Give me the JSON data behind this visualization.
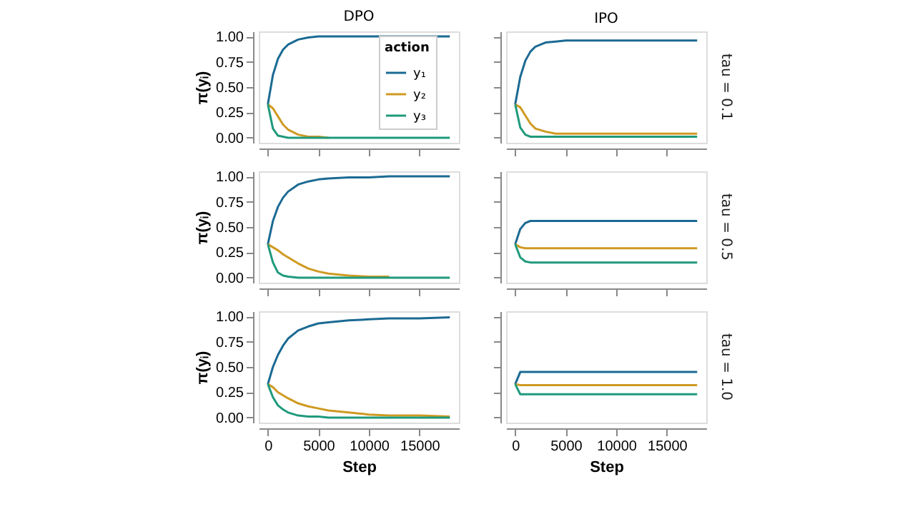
{
  "chart_data": [
    {
      "type": "line",
      "title": "DPO",
      "ylabel": "π(yᵢ)",
      "legend_title": "action",
      "legend": "right",
      "tick_labels": "y",
      "xlim": [
        -900,
        18900
      ],
      "ylim": [
        -0.05,
        1.05
      ],
      "xticks": [
        0,
        5000,
        10000,
        15000
      ],
      "yticks": [
        {
          "value": 0,
          "label": "0.00"
        },
        {
          "value": 0.25,
          "label": "0.25"
        },
        {
          "value": 0.5,
          "label": "0.50"
        },
        {
          "value": 0.75,
          "label": "0.75"
        },
        {
          "value": 1,
          "label": "1.00"
        }
      ],
      "x": [
        0,
        500,
        1000,
        1500,
        2000,
        3000,
        4000,
        5000,
        6000,
        8000,
        10000,
        12000,
        15000,
        18000
      ],
      "series": [
        {
          "name": "y₁",
          "color": "#1b6a93",
          "values": [
            0.33,
            0.62,
            0.78,
            0.87,
            0.92,
            0.97,
            0.99,
            1,
            1,
            1,
            1,
            1,
            1,
            1
          ]
        },
        {
          "name": "y₂",
          "color": "#cf9a22",
          "values": [
            0.33,
            0.29,
            0.21,
            0.13,
            0.08,
            0.03,
            0.01,
            0.01,
            0,
            null,
            null,
            null,
            null,
            null
          ]
        },
        {
          "name": "y₃",
          "color": "#1f9a7c",
          "values": [
            0.33,
            0.09,
            0.02,
            0.01,
            0,
            0,
            0,
            0,
            0,
            0,
            0,
            0,
            0,
            0
          ]
        }
      ]
    },
    {
      "type": "line",
      "title": "IPO",
      "y2label": "tau = 0.1",
      "tick_labels": false,
      "xlim": [
        -900,
        18900
      ],
      "ylim": [
        -0.05,
        1.05
      ],
      "xticks": [
        0,
        5000,
        10000,
        15000
      ],
      "yticks": [
        0,
        0.25,
        0.5,
        0.75,
        1
      ],
      "x": [
        0,
        500,
        1000,
        1500,
        2000,
        3000,
        4000,
        5000,
        6000,
        8000,
        10000,
        12000,
        15000,
        18000
      ],
      "series": [
        {
          "color": "#1b6a93",
          "values": [
            0.33,
            0.6,
            0.76,
            0.85,
            0.9,
            0.94,
            0.95,
            0.96,
            0.96,
            0.96,
            0.96,
            0.96,
            0.96,
            0.96
          ]
        },
        {
          "color": "#cf9a22",
          "values": [
            0.33,
            0.3,
            0.22,
            0.14,
            0.09,
            0.06,
            0.04,
            0.04,
            0.04,
            0.04,
            0.04,
            0.04,
            0.04,
            0.04
          ]
        },
        {
          "color": "#1f9a7c",
          "values": [
            0.33,
            0.1,
            0.03,
            0.01,
            0.01,
            0.01,
            0.01,
            0.01,
            0.01,
            0.01,
            0.01,
            0.01,
            0.01,
            0.01
          ]
        }
      ]
    },
    {
      "type": "line",
      "ylabel": "π(yᵢ)",
      "tick_labels": "y",
      "xlim": [
        -900,
        18900
      ],
      "ylim": [
        -0.05,
        1.05
      ],
      "xticks": [
        0,
        5000,
        10000,
        15000
      ],
      "yticks": [
        {
          "value": 0,
          "label": "0.00"
        },
        {
          "value": 0.25,
          "label": "0.25"
        },
        {
          "value": 0.5,
          "label": "0.50"
        },
        {
          "value": 0.75,
          "label": "0.75"
        },
        {
          "value": 1,
          "label": "1.00"
        }
      ],
      "x": [
        0,
        500,
        1000,
        1500,
        2000,
        3000,
        4000,
        5000,
        6000,
        8000,
        10000,
        12000,
        15000,
        18000
      ],
      "series": [
        {
          "color": "#1b6a93",
          "values": [
            0.33,
            0.56,
            0.7,
            0.79,
            0.85,
            0.92,
            0.95,
            0.97,
            0.98,
            0.99,
            0.99,
            1,
            1,
            1
          ]
        },
        {
          "color": "#cf9a22",
          "values": [
            0.33,
            0.3,
            0.27,
            0.23,
            0.2,
            0.14,
            0.09,
            0.06,
            0.04,
            0.02,
            0.01,
            0.01,
            null,
            null
          ]
        },
        {
          "color": "#1f9a7c",
          "values": [
            0.33,
            0.15,
            0.05,
            0.02,
            0.01,
            0,
            0,
            0,
            0,
            0,
            0,
            0,
            0,
            0
          ]
        }
      ]
    },
    {
      "type": "line",
      "y2label": "tau = 0.5",
      "tick_labels": false,
      "xlim": [
        -900,
        18900
      ],
      "ylim": [
        -0.05,
        1.05
      ],
      "xticks": [
        0,
        5000,
        10000,
        15000
      ],
      "yticks": [
        0,
        0.25,
        0.5,
        0.75,
        1
      ],
      "x": [
        0,
        500,
        1000,
        1500,
        2000,
        3000,
        4000,
        5000,
        6000,
        8000,
        10000,
        12000,
        15000,
        18000
      ],
      "series": [
        {
          "color": "#1b6a93",
          "values": [
            0.33,
            0.48,
            0.54,
            0.56,
            0.56,
            0.56,
            0.56,
            0.56,
            0.56,
            0.56,
            0.56,
            0.56,
            0.56,
            0.56
          ]
        },
        {
          "color": "#cf9a22",
          "values": [
            0.33,
            0.3,
            0.29,
            0.29,
            0.29,
            0.29,
            0.29,
            0.29,
            0.29,
            0.29,
            0.29,
            0.29,
            0.29,
            0.29
          ]
        },
        {
          "color": "#1f9a7c",
          "values": [
            0.33,
            0.2,
            0.16,
            0.15,
            0.15,
            0.15,
            0.15,
            0.15,
            0.15,
            0.15,
            0.15,
            0.15,
            0.15,
            0.15
          ]
        }
      ]
    },
    {
      "type": "line",
      "ylabel": "π(yᵢ)",
      "xlabel": "Step",
      "xlim": [
        -900,
        18900
      ],
      "ylim": [
        -0.05,
        1.05
      ],
      "xticks": [
        0,
        5000,
        10000,
        15000
      ],
      "yticks": [
        {
          "value": 0,
          "label": "0.00"
        },
        {
          "value": 0.25,
          "label": "0.25"
        },
        {
          "value": 0.5,
          "label": "0.50"
        },
        {
          "value": 0.75,
          "label": "0.75"
        },
        {
          "value": 1,
          "label": "1.00"
        }
      ],
      "x": [
        0,
        500,
        1000,
        1500,
        2000,
        3000,
        4000,
        5000,
        6000,
        8000,
        10000,
        12000,
        15000,
        18000
      ],
      "series": [
        {
          "color": "#1b6a93",
          "values": [
            0.33,
            0.5,
            0.62,
            0.71,
            0.78,
            0.86,
            0.9,
            0.93,
            0.94,
            0.96,
            0.97,
            0.98,
            0.98,
            0.99
          ]
        },
        {
          "color": "#cf9a22",
          "values": [
            0.33,
            0.3,
            0.25,
            0.22,
            0.19,
            0.14,
            0.11,
            0.09,
            0.07,
            0.05,
            0.03,
            0.02,
            0.02,
            0.01
          ]
        },
        {
          "color": "#1f9a7c",
          "values": [
            0.33,
            0.2,
            0.12,
            0.08,
            0.05,
            0.02,
            0.01,
            0.01,
            0,
            0,
            0,
            0,
            0,
            0
          ]
        }
      ]
    },
    {
      "type": "line",
      "y2label": "tau = 1.0",
      "xlabel": "Step",
      "tick_labels": "x",
      "xlim": [
        -900,
        18900
      ],
      "ylim": [
        -0.05,
        1.05
      ],
      "xticks": [
        0,
        5000,
        10000,
        15000
      ],
      "yticks": [
        0,
        0.25,
        0.5,
        0.75,
        1
      ],
      "x": [
        0,
        500,
        1000,
        1500,
        2000,
        3000,
        4000,
        5000,
        6000,
        8000,
        10000,
        12000,
        15000,
        18000
      ],
      "series": [
        {
          "color": "#1b6a93",
          "values": [
            0.33,
            0.45,
            0.45,
            0.45,
            0.45,
            0.45,
            0.45,
            0.45,
            0.45,
            0.45,
            0.45,
            0.45,
            0.45,
            0.45
          ]
        },
        {
          "color": "#cf9a22",
          "values": [
            0.33,
            0.32,
            0.32,
            0.32,
            0.32,
            0.32,
            0.32,
            0.32,
            0.32,
            0.32,
            0.32,
            0.32,
            0.32,
            0.32
          ]
        },
        {
          "color": "#1f9a7c",
          "values": [
            0.33,
            0.23,
            0.23,
            0.23,
            0.23,
            0.23,
            0.23,
            0.23,
            0.23,
            0.23,
            0.23,
            0.23,
            0.23,
            0.23
          ]
        }
      ]
    }
  ]
}
